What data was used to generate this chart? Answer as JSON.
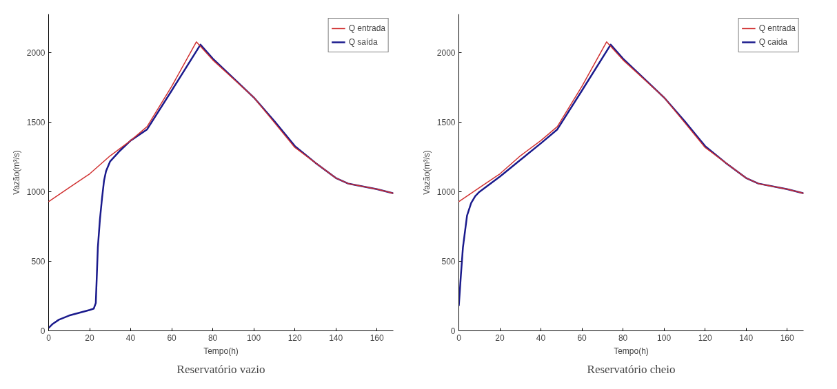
{
  "chart_data": [
    {
      "type": "line",
      "title": "Reservatório vazio",
      "xlabel": "Tempo(h)",
      "ylabel": "Vazão(m³/s)",
      "xlim": [
        0,
        168
      ],
      "ylim": [
        0,
        2280
      ],
      "xticks": [
        0,
        20,
        40,
        60,
        80,
        100,
        120,
        140,
        160
      ],
      "yticks": [
        0,
        500,
        1000,
        1500,
        2000
      ],
      "grid": false,
      "legend": "top right",
      "series": [
        {
          "name": "Q entrada",
          "color": "#d03030",
          "x": [
            0,
            10,
            20,
            30,
            40,
            48,
            60,
            72,
            80,
            100,
            110,
            120,
            130,
            140,
            146,
            160,
            168
          ],
          "values": [
            930,
            1030,
            1130,
            1260,
            1370,
            1470,
            1760,
            2080,
            1950,
            1680,
            1500,
            1320,
            1210,
            1100,
            1060,
            1020,
            990
          ]
        },
        {
          "name": "Q saída",
          "color": "#1a1a8c",
          "x": [
            0,
            2,
            5,
            10,
            15,
            20,
            22,
            23,
            24,
            25,
            26,
            27,
            28,
            30,
            35,
            40,
            48,
            60,
            74,
            80,
            100,
            110,
            120,
            130,
            140,
            146,
            160,
            168
          ],
          "values": [
            20,
            50,
            80,
            110,
            130,
            150,
            160,
            200,
            600,
            800,
            950,
            1080,
            1150,
            1220,
            1300,
            1370,
            1450,
            1730,
            2060,
            1960,
            1680,
            1510,
            1330,
            1210,
            1100,
            1060,
            1020,
            990
          ]
        }
      ]
    },
    {
      "type": "line",
      "title": "Reservatório cheio",
      "xlabel": "Tempo(h)",
      "ylabel": "Vazão(m³/s)",
      "xlim": [
        0,
        168
      ],
      "ylim": [
        0,
        2280
      ],
      "xticks": [
        0,
        20,
        40,
        60,
        80,
        100,
        120,
        140,
        160
      ],
      "yticks": [
        0,
        500,
        1000,
        1500,
        2000
      ],
      "grid": false,
      "legend": "top right",
      "series": [
        {
          "name": "Q entrada",
          "color": "#d03030",
          "x": [
            0,
            10,
            20,
            30,
            40,
            48,
            60,
            72,
            80,
            100,
            110,
            120,
            130,
            140,
            146,
            160,
            168
          ],
          "values": [
            930,
            1030,
            1130,
            1260,
            1370,
            1470,
            1760,
            2080,
            1950,
            1680,
            1500,
            1320,
            1210,
            1100,
            1060,
            1020,
            990
          ]
        },
        {
          "name": "Q caida",
          "color": "#1a1a8c",
          "x": [
            0,
            1,
            2,
            4,
            6,
            8,
            10,
            20,
            30,
            40,
            48,
            60,
            74,
            80,
            100,
            110,
            120,
            130,
            140,
            146,
            160,
            168
          ],
          "values": [
            180,
            400,
            600,
            830,
            920,
            970,
            1000,
            1110,
            1230,
            1350,
            1450,
            1730,
            2060,
            1960,
            1680,
            1510,
            1330,
            1210,
            1100,
            1060,
            1020,
            990
          ]
        }
      ]
    }
  ]
}
